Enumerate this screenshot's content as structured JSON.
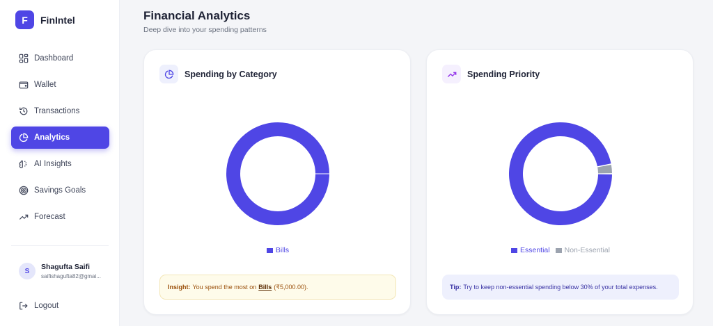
{
  "app": {
    "logo_letter": "F",
    "name": "FinIntel"
  },
  "sidebar": {
    "items": [
      {
        "label": "Dashboard",
        "icon": "dashboard-icon",
        "active": false
      },
      {
        "label": "Wallet",
        "icon": "wallet-icon",
        "active": false
      },
      {
        "label": "Transactions",
        "icon": "history-icon",
        "active": false
      },
      {
        "label": "Analytics",
        "icon": "pie-chart-icon",
        "active": true
      },
      {
        "label": "AI Insights",
        "icon": "brain-icon",
        "active": false
      },
      {
        "label": "Savings Goals",
        "icon": "target-icon",
        "active": false
      },
      {
        "label": "Forecast",
        "icon": "trending-up-icon",
        "active": false
      }
    ]
  },
  "user": {
    "initial": "S",
    "name": "Shagufta Saifi",
    "email": "saifishagufta82@gmai..."
  },
  "logout_label": "Logout",
  "page": {
    "title": "Financial Analytics",
    "subtitle": "Deep dive into your spending patterns"
  },
  "colors": {
    "accent": "#4f46e5",
    "secondary": "#9ca3af",
    "insight_bg": "#fefbea",
    "tip_bg": "#eef0fd"
  },
  "category_card": {
    "title": "Spending by Category",
    "icon": "pie-chart-icon",
    "insight_label": "Insight:",
    "insight_text": "You spend the most on",
    "insight_category": "Bills",
    "insight_amount": "(₹5,000.00)."
  },
  "priority_card": {
    "title": "Spending Priority",
    "icon": "trending-up-icon",
    "tip_label": "Tip:",
    "tip_text": "Try to keep non-essential spending below 30% of your total expenses."
  },
  "chart_data": [
    {
      "type": "pie",
      "title": "",
      "categories": [
        "Bills"
      ],
      "values": [
        100
      ],
      "colors": [
        "#4f46e5"
      ]
    },
    {
      "type": "pie",
      "title": "",
      "categories": [
        "Essential",
        "Non-Essential"
      ],
      "values": [
        97,
        3
      ],
      "colors": [
        "#4f46e5",
        "#9ca3af"
      ]
    }
  ]
}
